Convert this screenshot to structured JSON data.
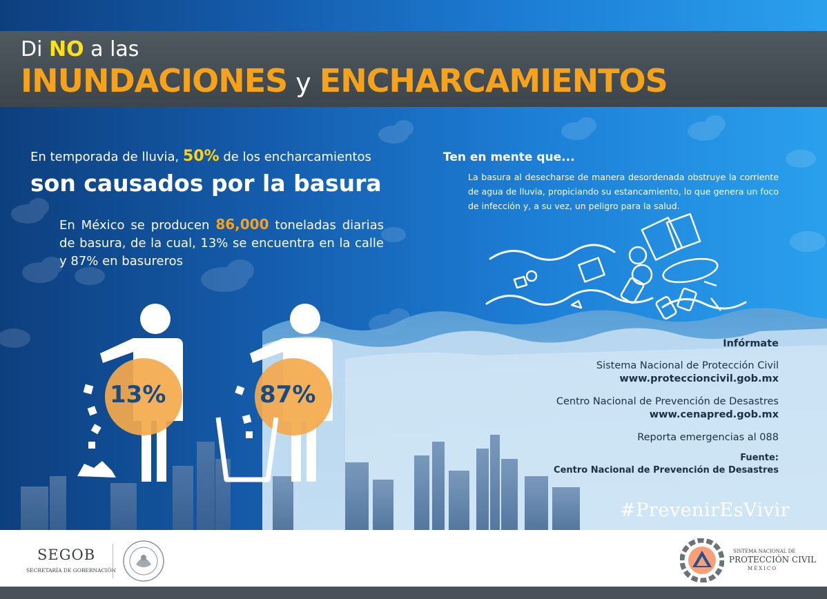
{
  "title": {
    "pre": "Di ",
    "no": "NO",
    "post": " a las",
    "word1": "INUNDACIONES",
    "connector": "y",
    "word2": "ENCHARCAMIENTOS"
  },
  "lead": {
    "part1": "En temporada de lluvia, ",
    "percent": "50%",
    "part2": " de los encharcamientos",
    "headline": "son causados por la basura",
    "body_pre": "En México se producen ",
    "tons": "86,000",
    "body_post": " toneladas diarias de basura, de la cual, 13% se encuentra en la calle y 87% en basureros"
  },
  "stats": [
    {
      "label": "13%",
      "value": 13,
      "where": "calle"
    },
    {
      "label": "87%",
      "value": 87,
      "where": "basureros"
    }
  ],
  "ten_en_mente": {
    "heading": "Ten en mente que...",
    "body": "La basura al desecharse de manera desordenada obstruye la corriente de agua de lluvia, propiciando su estancamiento, lo que genera un foco de infección y, a su vez, un peligro para la salud."
  },
  "info": {
    "heading": "Infórmate",
    "org1": "Sistema Nacional de Protección Civil",
    "url1": "www.proteccioncivil.gob.mx",
    "org2": "Centro Nacional de Prevención de Desastres",
    "url2": "www.cenapred.gob.mx",
    "emergency": "Reporta emergencias al 088",
    "source_label": "Fuente:",
    "source": "Centro Nacional de Prevención de Desastres"
  },
  "hashtag": "#PrevenirEsVivir",
  "footer": {
    "segob": "SEGOB",
    "segob_sub": "SECRETARÍA DE GOBERNACIÓN",
    "pc_small": "SISTEMA NACIONAL DE",
    "pc_big": "PROTECCIÓN CIVIL",
    "pc_mex": "MÉXICO"
  },
  "colors": {
    "orange": "#f7a21b",
    "yellow": "#ffe21a",
    "dark_band": "#3c454c",
    "blue_dark": "#0d3f7e",
    "blue_light": "#2aa0ec"
  },
  "icons": [
    "person-throwing-trash-icon",
    "person-using-bin-icon",
    "trash-bin-icon",
    "floating-garbage-icon",
    "rain-cloud-icon",
    "protection-civil-logo-icon",
    "mexico-seal-icon"
  ]
}
